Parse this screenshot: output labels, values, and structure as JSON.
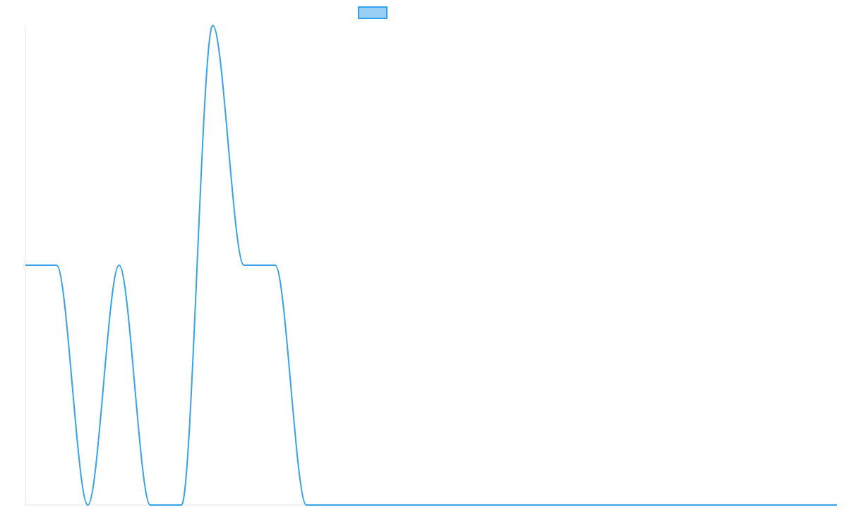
{
  "chart_data": {
    "type": "line",
    "title": "",
    "xlabel": "",
    "ylabel": "",
    "grid": false,
    "legend": {
      "placement": "top-center",
      "entries": [
        {
          "name": "",
          "color": "#36a2eb",
          "fill": "rgba(54,162,235,0.5)"
        }
      ]
    },
    "x": [
      0,
      1,
      2,
      3,
      4,
      5,
      6,
      7,
      8,
      9,
      10,
      11,
      12,
      13,
      14,
      15,
      16,
      17,
      18,
      19,
      20,
      21,
      22,
      23,
      24,
      25,
      26
    ],
    "xlim": [
      0,
      26
    ],
    "ylim": [
      0,
      2
    ],
    "series": [
      {
        "name": "",
        "color": "#36a2eb",
        "values": [
          1,
          1,
          0,
          1,
          0,
          0,
          2,
          1,
          1,
          0,
          0,
          0,
          0,
          0,
          0,
          0,
          0,
          0,
          0,
          0,
          0,
          0,
          0,
          0,
          0,
          0,
          0
        ]
      }
    ]
  }
}
